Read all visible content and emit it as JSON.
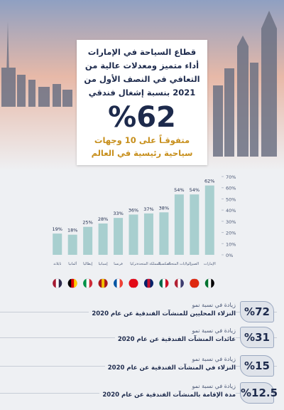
{
  "header": {
    "title_lines": [
      "قطاع السياحة في الإمارات",
      "أداء متميز ومعدلات عالية من",
      "التعافي في النصف الأول من",
      "2021 بنسبة إشغال فندقي"
    ],
    "highlight": "%62",
    "subtitle_lines": [
      "متفوقـاً على 10 وجهات",
      "سياحية رئيسية في العالم"
    ]
  },
  "chart_data": {
    "type": "bar",
    "categories": [
      "تايلاند",
      "ألمانيا",
      "إيطاليا",
      "إسبانيا",
      "فرنسا",
      "تركيا",
      "المملكة المتحدة",
      "المكسيك",
      "الولايات المتحدة",
      "الصين",
      "الإمارات"
    ],
    "values": [
      19,
      18,
      25,
      28,
      33,
      36,
      37,
      38,
      54,
      54,
      62
    ],
    "value_labels": [
      "19%",
      "18%",
      "25%",
      "28%",
      "33%",
      "36%",
      "37%",
      "38%",
      "54%",
      "54%",
      "62%"
    ],
    "color": "#a8cfcf",
    "ylim": [
      0,
      70
    ],
    "yticks": [
      {
        "value": 0,
        "label": "0%"
      },
      {
        "value": 10,
        "label": "10%"
      },
      {
        "value": 20,
        "label": "20%"
      },
      {
        "value": 30,
        "label": "30%"
      },
      {
        "value": 40,
        "label": "40%"
      },
      {
        "value": 50,
        "label": "50%"
      },
      {
        "value": 60,
        "label": "60%"
      },
      {
        "value": 70,
        "label": "70%"
      }
    ]
  },
  "stats": [
    {
      "value": "%72",
      "line1": "زيادة في نسبة نمو",
      "line2": "النزلاء المحليين للمنشآت الفندقية عن عام 2020"
    },
    {
      "value": "%31",
      "line1": "زيادة في نسبة نمو",
      "line2": "عائدات المنشآت الفندقية عن عام 2020"
    },
    {
      "value": "%15",
      "line1": "زيادة في نسبة نمو",
      "line2": "النزلاء في المنشآت الفندقية عن عام 2020"
    },
    {
      "value": "%12.5",
      "line1": "زيادة في نسبة نمو",
      "line2": "مدة الإقامة بالمنشآت الفندقية عن عام 2020"
    }
  ]
}
